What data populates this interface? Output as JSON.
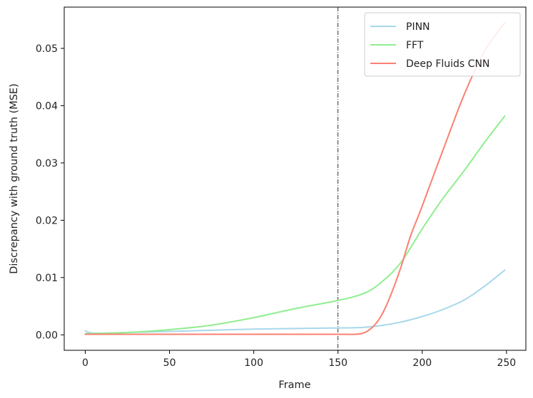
{
  "chart_data": {
    "type": "line",
    "title": "",
    "xlabel": "Frame",
    "ylabel": "Discrepancy with ground truth (MSE)",
    "xlim": [
      -12.5,
      261.5
    ],
    "ylim": [
      -0.0027,
      0.0572
    ],
    "xticks": [
      0,
      50,
      100,
      150,
      200,
      250
    ],
    "yticks": [
      0.0,
      0.01,
      0.02,
      0.03,
      0.04,
      0.05
    ],
    "xtick_labels": [
      "0",
      "50",
      "100",
      "150",
      "200",
      "250"
    ],
    "ytick_labels": [
      "0.00",
      "0.01",
      "0.02",
      "0.03",
      "0.04",
      "0.05"
    ],
    "vline": {
      "x": 150,
      "style": "dash-dot",
      "color": "#000000"
    },
    "legend_position": "top-right",
    "grid": false,
    "series": [
      {
        "name": "PINN",
        "color": "#a8d8ea",
        "x": [
          0,
          5,
          25,
          50,
          75,
          100,
          125,
          150,
          165,
          175,
          187,
          200,
          212,
          225,
          237,
          249
        ],
        "y": [
          0.0007,
          0.0003,
          0.0004,
          0.0006,
          0.0008,
          0.001,
          0.0011,
          0.0012,
          0.0013,
          0.0016,
          0.0022,
          0.0032,
          0.0044,
          0.0061,
          0.0085,
          0.0113
        ]
      },
      {
        "name": "FFT",
        "color": "#90ee90",
        "x": [
          0,
          25,
          50,
          75,
          100,
          125,
          150,
          165,
          175,
          187,
          200,
          212,
          225,
          237,
          249
        ],
        "y": [
          0.0002,
          0.0004,
          0.0009,
          0.0017,
          0.003,
          0.0046,
          0.006,
          0.0072,
          0.009,
          0.0125,
          0.0185,
          0.0237,
          0.0287,
          0.0336,
          0.0382
        ]
      },
      {
        "name": "Deep Fluids CNN",
        "color": "#fa8072",
        "x": [
          0,
          50,
          100,
          150,
          160,
          165,
          170,
          175,
          180,
          187,
          193,
          200,
          212,
          225,
          237,
          249
        ],
        "y": [
          0.0001,
          0.0001,
          0.0001,
          0.0001,
          0.0001,
          0.0003,
          0.0012,
          0.003,
          0.006,
          0.0115,
          0.0172,
          0.0225,
          0.032,
          0.042,
          0.0495,
          0.0545
        ]
      }
    ]
  }
}
